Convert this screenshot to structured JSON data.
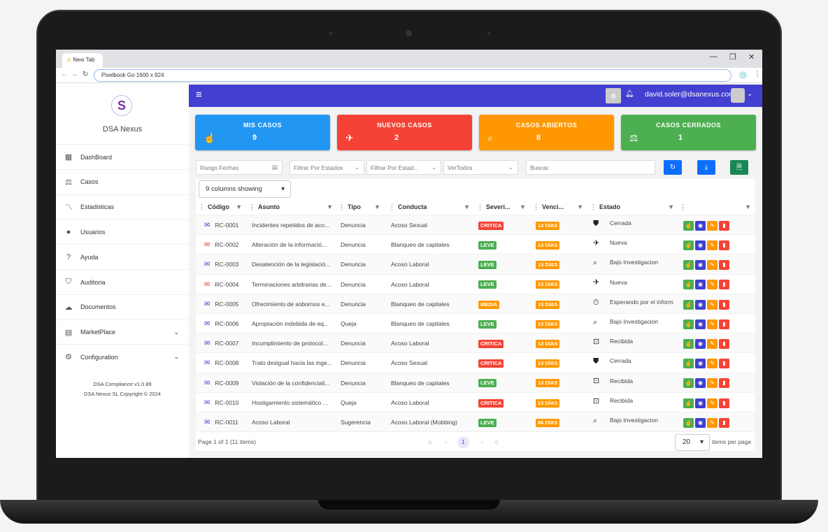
{
  "browser": {
    "tab_title": "New Tab",
    "url": "Pixelbook Go   1600 x 924"
  },
  "sidebar": {
    "brand": "DSA Nexus",
    "items": [
      {
        "label": "DashBoard",
        "icon": "dashboard-icon",
        "glyph": "▦"
      },
      {
        "label": "Casos",
        "icon": "gavel-icon",
        "glyph": "⚖"
      },
      {
        "label": "Estadisticas",
        "icon": "chart-search-icon",
        "glyph": "〽"
      },
      {
        "label": "Usuarios",
        "icon": "user-circle-icon",
        "glyph": "●"
      },
      {
        "label": "Ayuda",
        "icon": "help-icon",
        "glyph": "?"
      },
      {
        "label": "Auditoria",
        "icon": "shield-icon",
        "glyph": "⛉"
      },
      {
        "label": "Documentos",
        "icon": "cloud-icon",
        "glyph": "☁"
      },
      {
        "label": "MarketPlace",
        "icon": "store-icon",
        "glyph": "▤",
        "expand": true
      },
      {
        "label": "Configuration",
        "icon": "gear-icon",
        "glyph": "⚙",
        "expand": true
      }
    ],
    "version": "DSA Compliance v1.0.89",
    "copyright": "DSA Nexus SL Copyright © 2024"
  },
  "header": {
    "user_email": "david.soler@dsanexus.com"
  },
  "cards": [
    {
      "title": "MIS CASOS",
      "value": "9",
      "color": "#2196f3",
      "icon": "hand-pointer-icon",
      "glyph": "☝"
    },
    {
      "title": "NUEVOS CASOS",
      "value": "2",
      "color": "#f44336",
      "icon": "plane-landing-icon",
      "glyph": "✈"
    },
    {
      "title": "CASOS ABIERTOS",
      "value": "8",
      "color": "#ff9800",
      "icon": "search-icon",
      "glyph": "⌕"
    },
    {
      "title": "CASOS CERRADOS",
      "value": "1",
      "color": "#4caf50",
      "icon": "gavel-icon",
      "glyph": "⚖"
    }
  ],
  "filters": {
    "date_range": "Rango Fechas",
    "estados": "Filtrar Por Estados",
    "estados2": "Filtrar Por Estad...",
    "ver": "VerTodos",
    "search_placeholder": "Buscar"
  },
  "grid": {
    "columns_showing": "9 columns showing",
    "columns": [
      "Código",
      "Asunto",
      "Tipo",
      "Conducta",
      "Severi...",
      "Venci...",
      "Estado",
      ""
    ],
    "rows": [
      {
        "code": "RC-0001",
        "unread": false,
        "asunto": "Incidentes repetidos de aco...",
        "tipo": "Denuncia",
        "conducta": "Acoso Sexual",
        "sev": "CRITICA",
        "venc": "13 DÍAS",
        "estado": "Cerrada",
        "estado_icon": "shield-check-icon"
      },
      {
        "code": "RC-0002",
        "unread": true,
        "asunto": "Alteración de la informació...",
        "tipo": "Denuncia",
        "conducta": "Blanqueo de capitales",
        "sev": "LEVE",
        "venc": "13 DÍAS",
        "estado": "Nueva",
        "estado_icon": "plane-landing-icon"
      },
      {
        "code": "RC-0003",
        "unread": false,
        "asunto": "Desatención de la legislació...",
        "tipo": "Denuncia",
        "conducta": "Acoso Laboral",
        "sev": "LEVE",
        "venc": "13 DÍAS",
        "estado": "Bajo Investigacion",
        "estado_icon": "search-icon"
      },
      {
        "code": "RC-0004",
        "unread": true,
        "asunto": "Terminaciones arbitrarias de...",
        "tipo": "Denuncia",
        "conducta": "Acoso Laboral",
        "sev": "LEVE",
        "venc": "13 DÍAS",
        "estado": "Nueva",
        "estado_icon": "plane-landing-icon"
      },
      {
        "code": "RC-0005",
        "unread": false,
        "asunto": "Ofrecimiento de sobornos e...",
        "tipo": "Denuncia",
        "conducta": "Blanqueo de capitales",
        "sev": "MEDIA",
        "venc": "13 DÍAS",
        "estado": "Esperando por el inform",
        "estado_icon": "timer-icon"
      },
      {
        "code": "RC-0006",
        "unread": false,
        "asunto": "Apropiación indebida de eq...",
        "tipo": "Queja",
        "conducta": "Blanqueo de capitales",
        "sev": "LEVE",
        "venc": "13 DÍAS",
        "estado": "Bajo Investigacion",
        "estado_icon": "search-icon"
      },
      {
        "code": "RC-0007",
        "unread": false,
        "asunto": "Incumplimiento de protocol...",
        "tipo": "Denuncia",
        "conducta": "Acoso Laboral",
        "sev": "CRITICA",
        "venc": "13 DÍAS",
        "estado": "Recibida",
        "estado_icon": "inbox-icon"
      },
      {
        "code": "RC-0008",
        "unread": false,
        "asunto": "Trato desigual hacia las inge...",
        "tipo": "Denuncia",
        "conducta": "Acoso Sexual",
        "sev": "CRITICA",
        "venc": "13 DÍAS",
        "estado": "Cerrada",
        "estado_icon": "shield-check-icon"
      },
      {
        "code": "RC-0009",
        "unread": false,
        "asunto": "Violación de la confidenciali...",
        "tipo": "Denuncia",
        "conducta": "Blanqueo de capitales",
        "sev": "LEVE",
        "venc": "13 DÍAS",
        "estado": "Recibida",
        "estado_icon": "inbox-icon"
      },
      {
        "code": "RC-0010",
        "unread": false,
        "asunto": "Hostigamiento sistemático ...",
        "tipo": "Queja",
        "conducta": "Acoso Laboral",
        "sev": "CRITICA",
        "venc": "13 DÍAS",
        "estado": "Recibida",
        "estado_icon": "inbox-icon"
      },
      {
        "code": "RC-0011",
        "unread": false,
        "asunto": "Acoso Laboral",
        "tipo": "Sugerencia",
        "conducta": "Acoso Laboral (Mobbing)",
        "sev": "LEVE",
        "venc": "86 DÍAS",
        "estado": "Bajo Investigacion",
        "estado_icon": "search-icon"
      }
    ],
    "pager": {
      "info": "Page 1 of 1 (11 items)",
      "current": "1",
      "page_size": "20",
      "page_size_label": "items per page"
    }
  },
  "colors": {
    "header": "#433fd0",
    "critica": "#f44336",
    "leve": "#4caf50",
    "media": "#ff9800",
    "venc": "#ff9800",
    "read_icon": "#3f3fd0",
    "unread_icon": "#f44336"
  }
}
